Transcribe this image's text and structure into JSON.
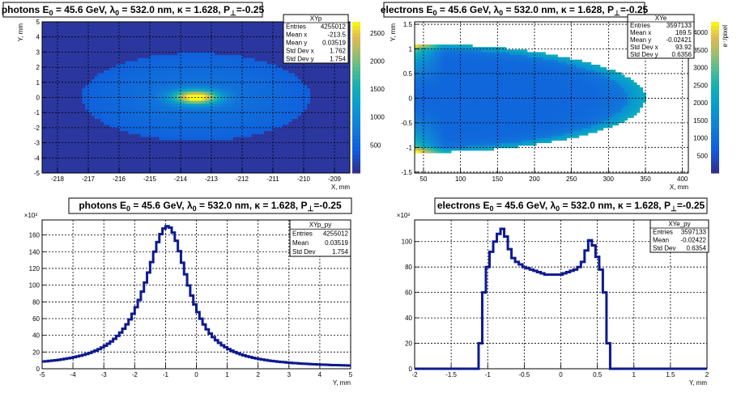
{
  "chart_data": [
    {
      "type": "heatmap",
      "hist_name": "XYp",
      "title": "photons E0 = 45.6 GeV, λ0 = 532.0 nm, κ = 1.628, P⊥=-0.25",
      "title_parts": {
        "label": "photons",
        "energy": "E",
        "energy_sub": "0",
        "energy_val": " = 45.6 GeV, ",
        "lambda": "λ",
        "lambda_sub": "0",
        "lambda_val": " = 532.0 nm, κ = 1.628, P",
        "pol_sub": "⊥",
        "pol_val": "=-0.25"
      },
      "xlabel": "X, mm",
      "ylabel": "Y, mm",
      "xlim": [
        -218.5,
        -208.5
      ],
      "ylim": [
        -5,
        5
      ],
      "xticks": [
        -218,
        -217,
        -216,
        -215,
        -214,
        -213,
        -212,
        -211,
        -210,
        -209
      ],
      "yticks": [
        -5,
        -4,
        -3,
        -2,
        -1,
        0,
        1,
        2,
        3,
        4,
        5
      ],
      "zticks": [
        500,
        1000,
        1500,
        2000,
        2500
      ],
      "zmax": 2700,
      "zlabel": "",
      "distribution": {
        "center_x": -213.5,
        "center_y": 0.035,
        "sigma_x": 1.762,
        "sigma_y": 1.754,
        "extent_x": 3.7,
        "extent_y": 2.9
      },
      "stats": [
        {
          "name": "Entries",
          "value": "4255012"
        },
        {
          "name": "Mean x",
          "value": "-213.5"
        },
        {
          "name": "Mean y",
          "value": "0.03519"
        },
        {
          "name": "Std Dev x",
          "value": "1.762"
        },
        {
          "name": "Std Dev y",
          "value": "1.754"
        }
      ]
    },
    {
      "type": "heatmap",
      "hist_name": "XYe",
      "title_parts": {
        "label": "electrons",
        "energy": "E",
        "energy_sub": "0",
        "energy_val": " = 45.6 GeV, ",
        "lambda": "λ",
        "lambda_sub": "0",
        "lambda_val": " = 532.0 nm, κ = 1.628, P",
        "pol_sub": "⊥",
        "pol_val": "=-0.25"
      },
      "xlabel": "X, mm",
      "ylabel": "Y, mm",
      "xlim": [
        38,
        408
      ],
      "ylim": [
        -1.52,
        1.55
      ],
      "xticks": [
        50,
        100,
        150,
        200,
        250,
        300,
        350,
        400
      ],
      "yticks": [
        -1.5,
        -1,
        -0.5,
        0,
        0.5,
        1,
        1.5
      ],
      "zticks": [
        500,
        1000,
        1500,
        2000,
        2500,
        3000,
        3500,
        4000
      ],
      "zmax": 4300,
      "zlabel": "e⁻/pixel",
      "distribution": {
        "x_min": 38,
        "x_max": 350,
        "y_half": 1.1
      },
      "stats": [
        {
          "name": "Entries",
          "value": "3597133"
        },
        {
          "name": "Mean x",
          "value": "169.5"
        },
        {
          "name": "Mean y",
          "value": "-0.02421"
        },
        {
          "name": "Std Dev x",
          "value": "93.92"
        },
        {
          "name": "Std Dev y",
          "value": "0.6356"
        }
      ]
    },
    {
      "type": "step",
      "hist_name": "XYp_py",
      "title_parts": {
        "label": "photons",
        "energy": "E",
        "energy_sub": "0",
        "energy_val": " = 45.6 GeV, ",
        "lambda": "λ",
        "lambda_sub": "0",
        "lambda_val": " = 532.0 nm, κ = 1.628, P",
        "pol_sub": "⊥",
        "pol_val": "=-0.25"
      },
      "xlabel": "Y, mm",
      "ylabel": "",
      "yscale_label": "×10³",
      "xlim": [
        -5,
        5
      ],
      "ylim": [
        0,
        178
      ],
      "xticks": [
        -5,
        -4,
        -3,
        -2,
        -1,
        0,
        1,
        2,
        3,
        4,
        5
      ],
      "yticks": [
        0,
        20,
        40,
        60,
        80,
        100,
        120,
        140,
        160
      ],
      "bins": {
        "x_start": -5,
        "bin_width": 0.1,
        "values": [
          8.7,
          9.0,
          9.4,
          9.8,
          10.2,
          10.7,
          11.2,
          11.8,
          12.4,
          13.1,
          13.9,
          14.7,
          15.6,
          16.6,
          17.7,
          18.9,
          20.3,
          21.8,
          23.5,
          25.4,
          27.6,
          30.0,
          32.7,
          35.8,
          39.3,
          43.3,
          47.9,
          53.1,
          59.0,
          65.8,
          73.6,
          82.4,
          92.3,
          103.2,
          115.1,
          127.6,
          140.0,
          151.5,
          161.1,
          167.7,
          170.5,
          168.9,
          162.9,
          153.1,
          140.6,
          126.8,
          112.9,
          99.7,
          87.6,
          76.9,
          67.7,
          59.8,
          53.0,
          47.1,
          42.1,
          37.8,
          34.1,
          30.9,
          28.1,
          25.7,
          23.5,
          21.6,
          20.0,
          18.5,
          17.2,
          16.0,
          14.9,
          14.0,
          13.1,
          12.3,
          11.6,
          11.0,
          10.4,
          9.8,
          9.3,
          8.9,
          8.5,
          8.1,
          7.8,
          7.4,
          7.1,
          6.8,
          6.6,
          6.3,
          6.1,
          5.9,
          5.7,
          5.5,
          5.3,
          5.1,
          5.0,
          4.8,
          4.7,
          4.5,
          4.4,
          4.3,
          4.2,
          4.1,
          4.0,
          3.9
        ]
      },
      "stats": [
        {
          "name": "Entries",
          "value": "4255012"
        },
        {
          "name": "Mean",
          "value": "0.03519"
        },
        {
          "name": "Std Dev",
          "value": "1.754"
        }
      ]
    },
    {
      "type": "step",
      "hist_name": "XYe_py",
      "title_parts": {
        "label": "electrons",
        "energy": "E",
        "energy_sub": "0",
        "energy_val": " = 45.6 GeV, ",
        "lambda": "λ",
        "lambda_sub": "0",
        "lambda_val": " = 532.0 nm, κ = 1.628, P",
        "pol_sub": "⊥",
        "pol_val": "=-0.25"
      },
      "xlabel": "Y, mm",
      "ylabel": "",
      "yscale_label": "×10³",
      "xlim": [
        -2,
        2
      ],
      "ylim": [
        0,
        117
      ],
      "xticks": [
        -2,
        -1.5,
        -1,
        -0.5,
        0,
        0.5,
        1,
        1.5,
        2
      ],
      "yticks": [
        0,
        20,
        40,
        60,
        80,
        100
      ],
      "bins": {
        "x_start": -1.125,
        "bin_width": 0.05,
        "values": [
          20,
          60,
          80,
          92,
          100,
          106,
          110,
          104,
          94,
          87,
          84,
          82,
          80,
          79,
          78,
          77,
          76,
          75,
          74,
          74,
          74,
          74,
          74,
          75,
          76,
          77,
          78,
          80,
          84,
          93,
          101,
          97,
          88,
          78,
          60,
          20
        ]
      },
      "stats": [
        {
          "name": "Entries",
          "value": "3597133"
        },
        {
          "name": "Mean",
          "value": "-0.02422"
        },
        {
          "name": "Std Dev",
          "value": "0.6354"
        }
      ]
    }
  ]
}
